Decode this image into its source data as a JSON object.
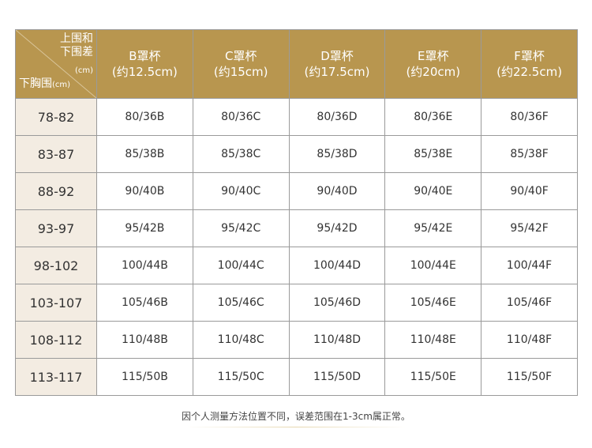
{
  "corner": {
    "top_label_line1": "上围和",
    "top_label_line2": "下围差",
    "top_unit": "(cm)",
    "bottom_label": "下胸围",
    "bottom_unit": "(cm)"
  },
  "columns": [
    {
      "name": "B罩杯",
      "diff": "(约12.5cm)"
    },
    {
      "name": "C罩杯",
      "diff": "(约15cm)"
    },
    {
      "name": "D罩杯",
      "diff": "(约17.5cm)"
    },
    {
      "name": "E罩杯",
      "diff": "(约20cm)"
    },
    {
      "name": "F罩杯",
      "diff": "(约22.5cm)"
    }
  ],
  "rows": [
    {
      "underbust": "78-82",
      "sizes": [
        "80/36B",
        "80/36C",
        "80/36D",
        "80/36E",
        "80/36F"
      ]
    },
    {
      "underbust": "83-87",
      "sizes": [
        "85/38B",
        "85/38C",
        "85/38D",
        "85/38E",
        "85/38F"
      ]
    },
    {
      "underbust": "88-92",
      "sizes": [
        "90/40B",
        "90/40C",
        "90/40D",
        "90/40E",
        "90/40F"
      ]
    },
    {
      "underbust": "93-97",
      "sizes": [
        "95/42B",
        "95/42C",
        "95/42D",
        "95/42E",
        "95/42F"
      ]
    },
    {
      "underbust": "98-102",
      "sizes": [
        "100/44B",
        "100/44C",
        "100/44D",
        "100/44E",
        "100/44F"
      ]
    },
    {
      "underbust": "103-107",
      "sizes": [
        "105/46B",
        "105/46C",
        "105/46D",
        "105/46E",
        "105/46F"
      ]
    },
    {
      "underbust": "108-112",
      "sizes": [
        "110/48B",
        "110/48C",
        "110/48D",
        "110/48E",
        "110/48F"
      ]
    },
    {
      "underbust": "113-117",
      "sizes": [
        "115/50B",
        "115/50C",
        "115/50D",
        "115/50E",
        "115/50F"
      ]
    }
  ],
  "note": "因个人测量方法位置不同，误差范围在1-3cm属正常。",
  "colors": {
    "header_bg": "#b8964f",
    "first_col_bg": "#f3ece2",
    "border": "#9a9a9a"
  }
}
